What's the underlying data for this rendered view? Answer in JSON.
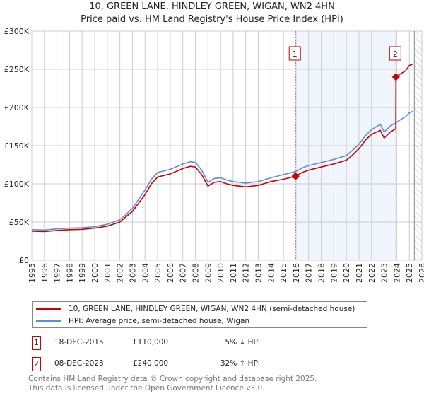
{
  "chart_data": {
    "type": "line",
    "title": "10, GREEN LANE, HINDLEY GREEN, WIGAN, WN2 4HN",
    "subtitle": "Price paid vs. HM Land Registry's House Price Index (HPI)",
    "xlim": [
      1995,
      2026
    ],
    "ylim": [
      0,
      300000
    ],
    "x_ticks": [
      "1995",
      "1996",
      "1997",
      "1998",
      "1999",
      "2000",
      "2001",
      "2002",
      "2003",
      "2004",
      "2005",
      "2006",
      "2007",
      "2008",
      "2009",
      "2010",
      "2011",
      "2012",
      "2013",
      "2014",
      "2015",
      "2016",
      "2017",
      "2018",
      "2019",
      "2020",
      "2021",
      "2022",
      "2023",
      "2024",
      "2025",
      "2026"
    ],
    "y_ticks": [
      {
        "v": 0,
        "label": "£0"
      },
      {
        "v": 50000,
        "label": "£50K"
      },
      {
        "v": 100000,
        "label": "£100K"
      },
      {
        "v": 150000,
        "label": "£150K"
      },
      {
        "v": 200000,
        "label": "£200K"
      },
      {
        "v": 250000,
        "label": "£250K"
      },
      {
        "v": 300000,
        "label": "£300K"
      }
    ],
    "grid": true,
    "shaded_region": [
      2015.96,
      2023.94
    ],
    "forecast_hatch_from": 2025.4,
    "series": [
      {
        "name": "10, GREEN LANE, HINDLEY GREEN, WIGAN, WN2 4HN (semi-detached house)",
        "color": "#cc0000",
        "x": [
          1995,
          1996,
          1997,
          1998,
          1999,
          2000,
          2001,
          2002,
          2002.5,
          2003,
          2003.5,
          2004,
          2004.5,
          2005,
          2006,
          2007,
          2007.6,
          2008,
          2008.5,
          2009,
          2009.5,
          2010,
          2010.5,
          2011,
          2012,
          2013,
          2014,
          2015,
          2015.96,
          2016.5,
          2017,
          2018,
          2019,
          2020,
          2020.5,
          2021,
          2021.5,
          2022,
          2022.7,
          2023,
          2023.5,
          2023.93,
          2023.94,
          2024.3,
          2024.7,
          2025,
          2025.3
        ],
        "values": [
          38000,
          37500,
          39000,
          40000,
          40500,
          42000,
          44500,
          50000,
          57000,
          64000,
          75000,
          86000,
          100000,
          109000,
          113000,
          120000,
          123000,
          122000,
          112000,
          97000,
          102000,
          103000,
          100000,
          98000,
          96000,
          98000,
          103000,
          106000,
          110000,
          115000,
          118000,
          122000,
          126000,
          131000,
          138000,
          146000,
          157000,
          165000,
          170000,
          160000,
          168000,
          172000,
          240000,
          244000,
          248000,
          255000,
          257000
        ]
      },
      {
        "name": "HPI: Average price, semi-detached house, Wigan",
        "color": "#5b8fd6",
        "x": [
          1995,
          1996,
          1997,
          1998,
          1999,
          2000,
          2001,
          2002,
          2002.5,
          2003,
          2003.5,
          2004,
          2004.5,
          2005,
          2006,
          2007,
          2007.6,
          2008,
          2008.5,
          2009,
          2009.5,
          2010,
          2010.5,
          2011,
          2012,
          2013,
          2014,
          2015,
          2015.96,
          2016.5,
          2017,
          2018,
          2019,
          2020,
          2020.5,
          2021,
          2021.5,
          2022,
          2022.7,
          2023,
          2023.5,
          2023.94,
          2024.3,
          2024.7,
          2025,
          2025.3
        ],
        "values": [
          40000,
          39500,
          41000,
          42000,
          42500,
          44000,
          47000,
          53000,
          60000,
          68000,
          80000,
          92000,
          106000,
          115000,
          119000,
          126000,
          129000,
          128000,
          118000,
          102000,
          107000,
          108000,
          105000,
          103000,
          101000,
          103000,
          108000,
          112000,
          116000,
          121000,
          124000,
          128000,
          132000,
          137000,
          144000,
          152000,
          163000,
          171000,
          178000,
          168000,
          176000,
          180000,
          184000,
          188000,
          193000,
          195000
        ]
      }
    ],
    "sales": [
      {
        "label": "1",
        "x": 2015.96,
        "y": 110000,
        "date": "18-DEC-2015",
        "price": "£110,000",
        "hpi": "5% ↓ HPI"
      },
      {
        "label": "2",
        "x": 2023.94,
        "y": 240000,
        "date": "08-DEC-2023",
        "price": "£240,000",
        "hpi": "32% ↑ HPI"
      }
    ]
  },
  "legend": {
    "property": "10, GREEN LANE, HINDLEY GREEN, WIGAN, WN2 4HN (semi-detached house)",
    "hpi": "HPI: Average price, semi-detached house, Wigan"
  },
  "footer": {
    "line1": "Contains HM Land Registry data © Crown copyright and database right 2025.",
    "line2": "This data is licensed under the Open Government Licence v3.0."
  }
}
